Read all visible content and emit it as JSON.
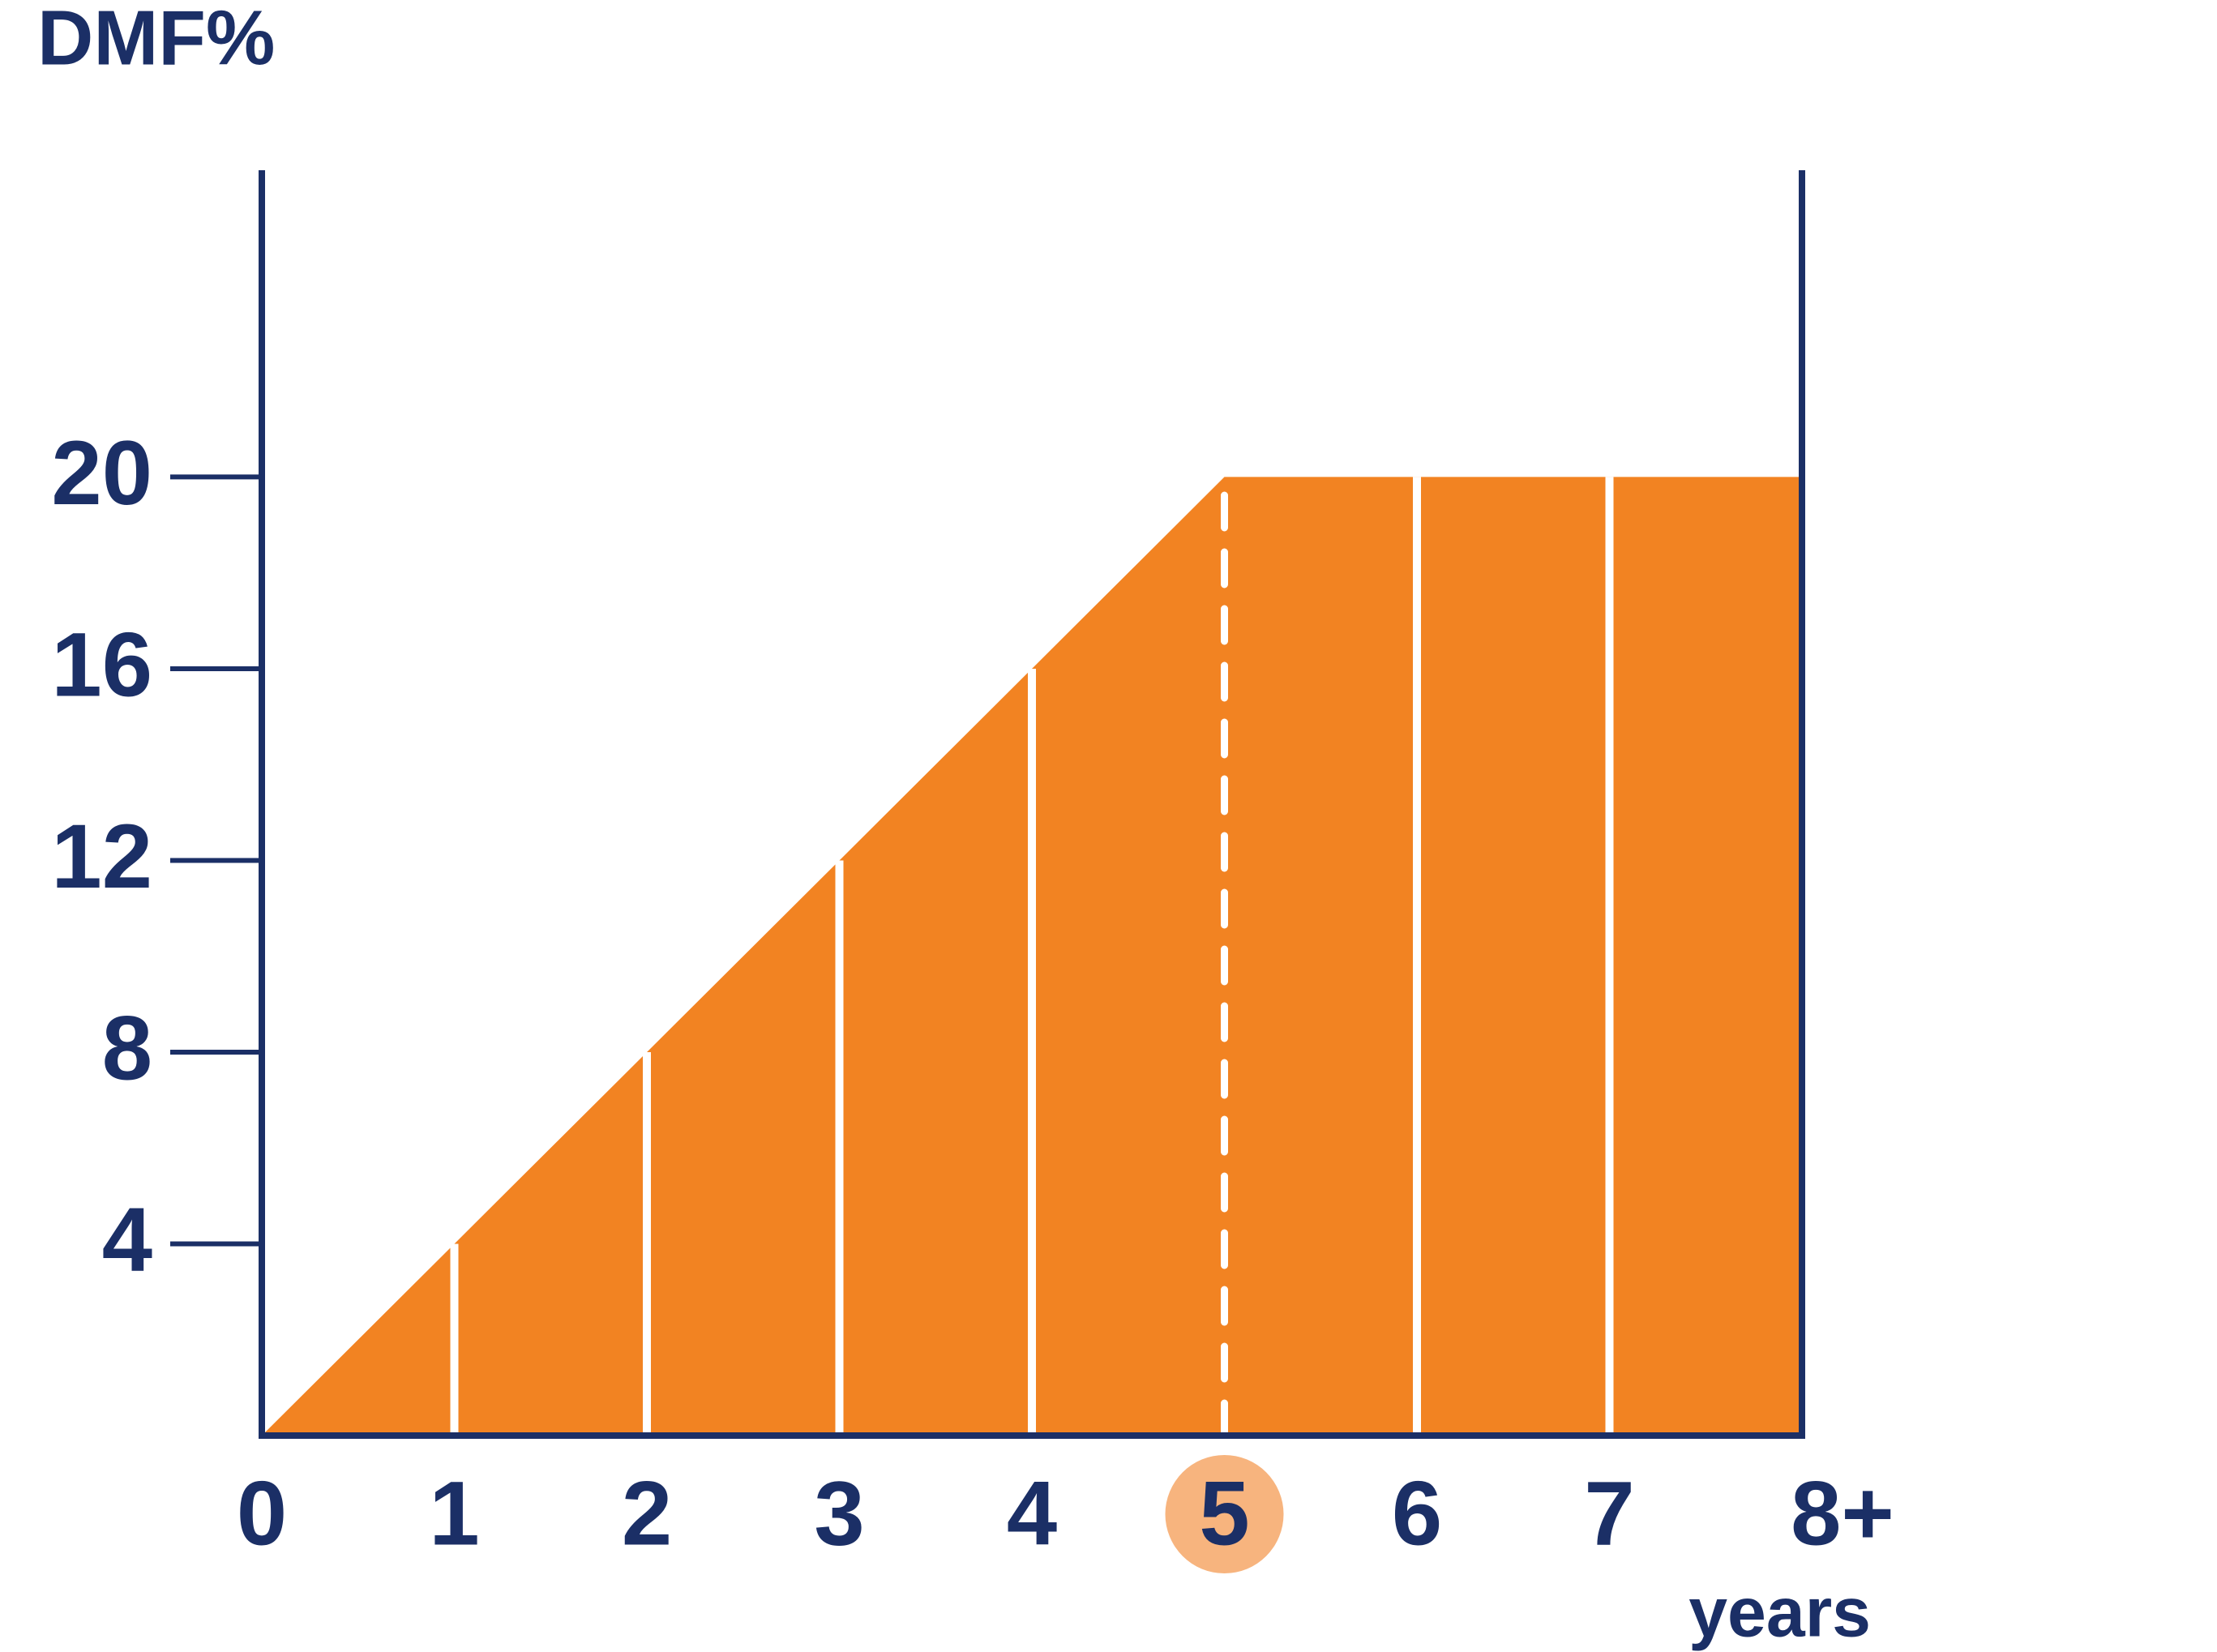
{
  "chart_data": {
    "type": "area",
    "y_label": "DMF%",
    "x_label": "years",
    "categories": [
      "0",
      "1",
      "2",
      "3",
      "4",
      "5",
      "6",
      "7",
      "8+"
    ],
    "values": [
      0,
      4,
      8,
      12,
      16,
      20,
      20,
      20,
      20
    ],
    "color": "#f28322",
    "highlight": 5,
    "ylim": [
      0,
      26.4
    ],
    "yticks": [
      4,
      8,
      12,
      16,
      20
    ]
  }
}
